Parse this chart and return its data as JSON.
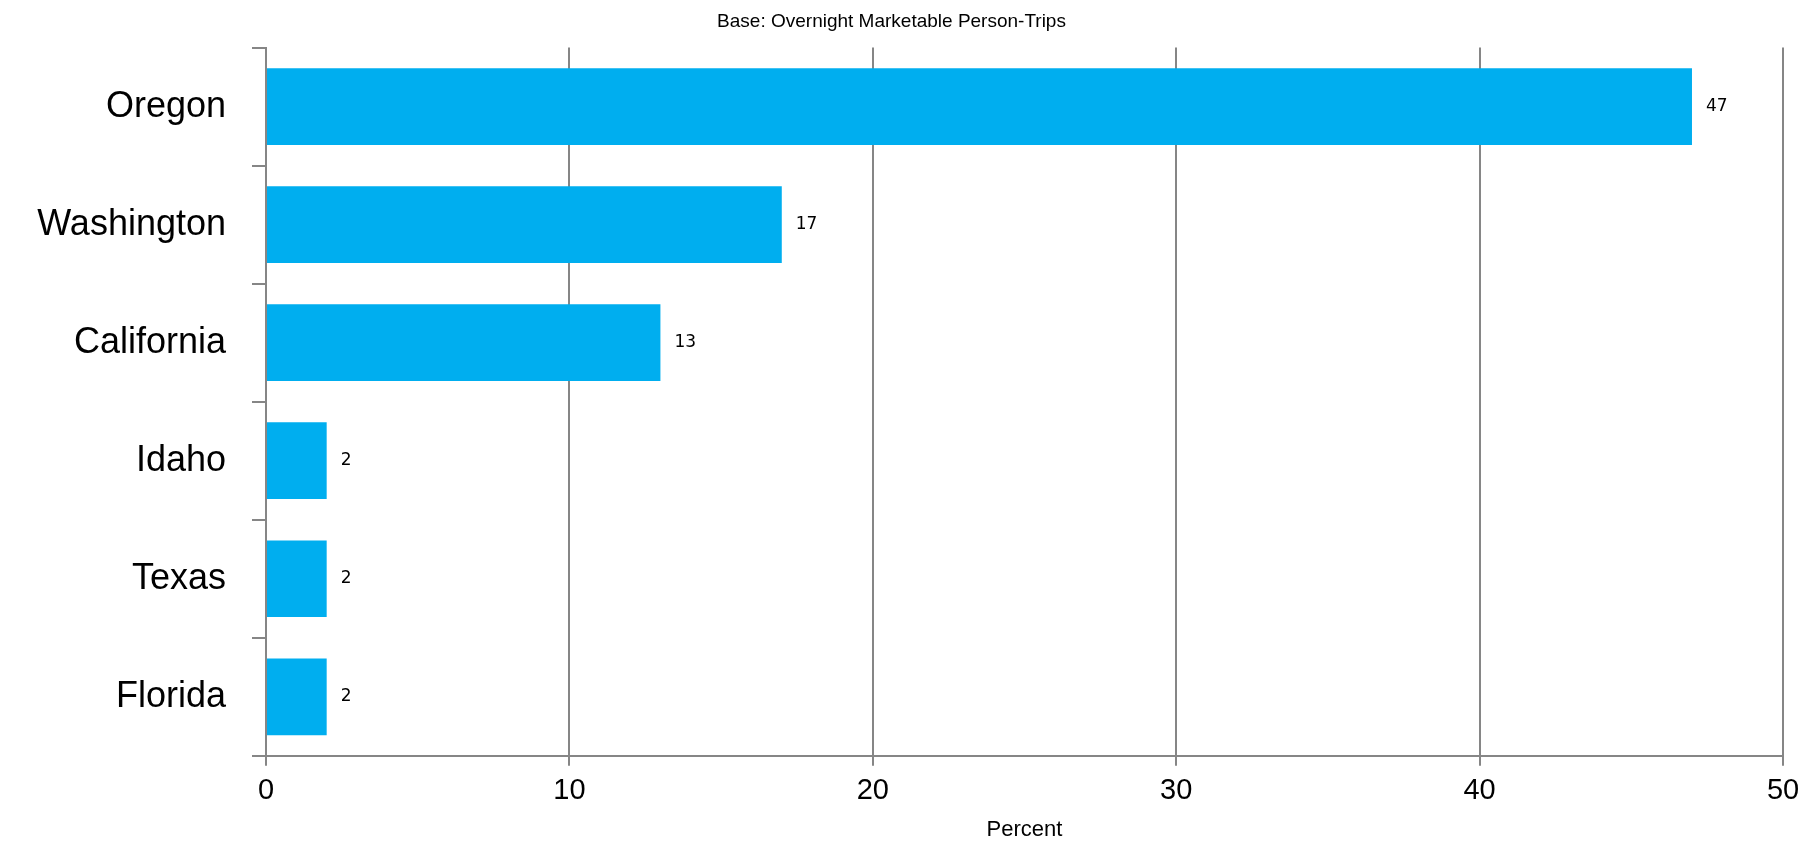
{
  "chart_data": {
    "type": "bar",
    "orientation": "horizontal",
    "title": "Base: Overnight Marketable Person-Trips",
    "xlabel": "Percent",
    "categories": [
      "Oregon",
      "Washington",
      "California",
      "Idaho",
      "Texas",
      "Florida"
    ],
    "values": [
      47,
      17,
      13,
      2,
      2,
      2
    ],
    "color": "#00aeef",
    "xlim": [
      0,
      50
    ],
    "xticks": [
      0,
      10,
      20,
      30,
      40,
      50
    ],
    "grid": "x",
    "data_labels": true
  }
}
